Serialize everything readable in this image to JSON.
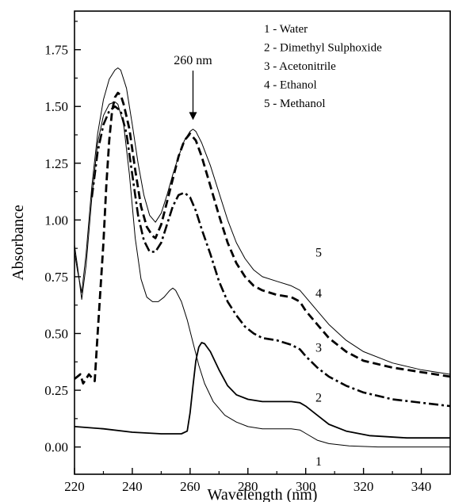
{
  "chart_data": {
    "type": "line",
    "xlabel": "Wavelength (nm)",
    "ylabel": "Absorbance",
    "xlim": [
      220,
      350
    ],
    "ylim": [
      -0.12,
      1.92
    ],
    "xticks": [
      220,
      240,
      260,
      280,
      300,
      320,
      340
    ],
    "xtick_labels": [
      "220",
      "240",
      "260",
      "280",
      "300",
      "320",
      "340"
    ],
    "yticks": [
      0.0,
      0.25,
      0.5,
      0.75,
      1.0,
      1.25,
      1.5,
      1.75
    ],
    "ytick_labels": [
      "0.00",
      "0.25",
      "0.50",
      "0.75",
      "1.00",
      "1.25",
      "1.50",
      "1.75"
    ],
    "grid": false,
    "legend_position": "top-right",
    "legend": [
      "1 - Water",
      "2 - Dimethyl Sulphoxide",
      "3 - Acetonitrile",
      "4 - Ethanol",
      "5 - Methanol"
    ],
    "annotation": {
      "text": "260 nm",
      "x": 261,
      "arrow_from_y": 1.72,
      "arrow_to_y": 1.44
    },
    "series": [
      {
        "label": "1",
        "style": "solid-thin",
        "points": [
          [
            220,
            0.89
          ],
          [
            221,
            0.8
          ],
          [
            222.5,
            0.65
          ],
          [
            224,
            0.8
          ],
          [
            226,
            1.1
          ],
          [
            228,
            1.34
          ],
          [
            230,
            1.46
          ],
          [
            232,
            1.51
          ],
          [
            234,
            1.52
          ],
          [
            235,
            1.51
          ],
          [
            237,
            1.42
          ],
          [
            239,
            1.2
          ],
          [
            241,
            0.92
          ],
          [
            243,
            0.74
          ],
          [
            245,
            0.66
          ],
          [
            247,
            0.64
          ],
          [
            249,
            0.64
          ],
          [
            251,
            0.66
          ],
          [
            253,
            0.69
          ],
          [
            254,
            0.7
          ],
          [
            255,
            0.69
          ],
          [
            257,
            0.64
          ],
          [
            259,
            0.56
          ],
          [
            261,
            0.46
          ],
          [
            263,
            0.36
          ],
          [
            265,
            0.28
          ],
          [
            268,
            0.2
          ],
          [
            272,
            0.14
          ],
          [
            276,
            0.11
          ],
          [
            280,
            0.09
          ],
          [
            285,
            0.08
          ],
          [
            290,
            0.08
          ],
          [
            295,
            0.08
          ],
          [
            298,
            0.075
          ],
          [
            300,
            0.06
          ],
          [
            304,
            0.03
          ],
          [
            308,
            0.015
          ],
          [
            315,
            0.005
          ],
          [
            325,
            0.0
          ],
          [
            350,
            0.0
          ]
        ],
        "curve_label": {
          "text": "1",
          "x": 288,
          "y": -0.06
        }
      },
      {
        "label": "2",
        "style": "solid-thick",
        "points": [
          [
            220,
            0.09
          ],
          [
            230,
            0.08
          ],
          [
            240,
            0.065
          ],
          [
            250,
            0.058
          ],
          [
            257,
            0.058
          ],
          [
            259,
            0.07
          ],
          [
            260,
            0.15
          ],
          [
            261,
            0.27
          ],
          [
            262,
            0.38
          ],
          [
            263,
            0.44
          ],
          [
            264,
            0.46
          ],
          [
            265,
            0.455
          ],
          [
            267,
            0.42
          ],
          [
            270,
            0.34
          ],
          [
            273,
            0.27
          ],
          [
            276,
            0.23
          ],
          [
            280,
            0.21
          ],
          [
            285,
            0.2
          ],
          [
            290,
            0.2
          ],
          [
            295,
            0.2
          ],
          [
            298,
            0.195
          ],
          [
            300,
            0.18
          ],
          [
            304,
            0.14
          ],
          [
            308,
            0.1
          ],
          [
            314,
            0.07
          ],
          [
            322,
            0.05
          ],
          [
            335,
            0.04
          ],
          [
            350,
            0.04
          ]
        ],
        "curve_label": {
          "text": "2",
          "x": 288,
          "y": 0.22
        }
      },
      {
        "label": "3",
        "style": "dash-dot",
        "points": [
          [
            226,
            1.1
          ],
          [
            228,
            1.3
          ],
          [
            230,
            1.42
          ],
          [
            232,
            1.48
          ],
          [
            234,
            1.5
          ],
          [
            236,
            1.48
          ],
          [
            238,
            1.38
          ],
          [
            240,
            1.2
          ],
          [
            242,
            1.02
          ],
          [
            244,
            0.91
          ],
          [
            246,
            0.86
          ],
          [
            248,
            0.86
          ],
          [
            250,
            0.9
          ],
          [
            252,
            0.98
          ],
          [
            254,
            1.06
          ],
          [
            256,
            1.11
          ],
          [
            258,
            1.12
          ],
          [
            260,
            1.1
          ],
          [
            262,
            1.04
          ],
          [
            264,
            0.96
          ],
          [
            267,
            0.85
          ],
          [
            270,
            0.73
          ],
          [
            273,
            0.64
          ],
          [
            276,
            0.58
          ],
          [
            279,
            0.53
          ],
          [
            282,
            0.5
          ],
          [
            285,
            0.48
          ],
          [
            290,
            0.47
          ],
          [
            295,
            0.45
          ],
          [
            298,
            0.43
          ],
          [
            300,
            0.4
          ],
          [
            304,
            0.35
          ],
          [
            308,
            0.31
          ],
          [
            314,
            0.27
          ],
          [
            320,
            0.24
          ],
          [
            330,
            0.21
          ],
          [
            340,
            0.195
          ],
          [
            350,
            0.18
          ]
        ],
        "curve_label": {
          "text": "3",
          "x": 288,
          "y": 0.44
        }
      },
      {
        "label": "4",
        "style": "dashed-thick",
        "points": [
          [
            220,
            0.3
          ],
          [
            222,
            0.32
          ],
          [
            223,
            0.28
          ],
          [
            225,
            0.32
          ],
          [
            227,
            0.29
          ],
          [
            228,
            0.5
          ],
          [
            230,
            0.9
          ],
          [
            231,
            1.15
          ],
          [
            232,
            1.35
          ],
          [
            233,
            1.48
          ],
          [
            234,
            1.54
          ],
          [
            235,
            1.56
          ],
          [
            236,
            1.55
          ],
          [
            237,
            1.51
          ],
          [
            239,
            1.4
          ],
          [
            241,
            1.22
          ],
          [
            243,
            1.06
          ],
          [
            245,
            0.97
          ],
          [
            247,
            0.93
          ],
          [
            248,
            0.92
          ],
          [
            250,
            0.98
          ],
          [
            252,
            1.08
          ],
          [
            254,
            1.18
          ],
          [
            256,
            1.28
          ],
          [
            258,
            1.35
          ],
          [
            260,
            1.38
          ],
          [
            262,
            1.35
          ],
          [
            264,
            1.28
          ],
          [
            267,
            1.15
          ],
          [
            270,
            1.02
          ],
          [
            273,
            0.9
          ],
          [
            276,
            0.81
          ],
          [
            279,
            0.75
          ],
          [
            282,
            0.71
          ],
          [
            285,
            0.69
          ],
          [
            290,
            0.67
          ],
          [
            295,
            0.66
          ],
          [
            298,
            0.64
          ],
          [
            300,
            0.6
          ],
          [
            304,
            0.54
          ],
          [
            308,
            0.48
          ],
          [
            314,
            0.42
          ],
          [
            320,
            0.38
          ],
          [
            330,
            0.35
          ],
          [
            340,
            0.33
          ],
          [
            350,
            0.31
          ]
        ],
        "curve_label": {
          "text": "4",
          "x": 288,
          "y": 0.68
        }
      },
      {
        "label": "5",
        "style": "solid-thin",
        "points": [
          [
            220,
            0.86
          ],
          [
            221,
            0.78
          ],
          [
            222.5,
            0.68
          ],
          [
            224,
            0.85
          ],
          [
            226,
            1.15
          ],
          [
            228,
            1.38
          ],
          [
            230,
            1.53
          ],
          [
            232,
            1.62
          ],
          [
            234,
            1.66
          ],
          [
            235,
            1.67
          ],
          [
            236,
            1.66
          ],
          [
            238,
            1.58
          ],
          [
            240,
            1.42
          ],
          [
            242,
            1.25
          ],
          [
            244,
            1.11
          ],
          [
            246,
            1.02
          ],
          [
            248,
            0.99
          ],
          [
            250,
            1.03
          ],
          [
            252,
            1.11
          ],
          [
            254,
            1.2
          ],
          [
            256,
            1.28
          ],
          [
            258,
            1.35
          ],
          [
            260,
            1.39
          ],
          [
            261,
            1.4
          ],
          [
            262,
            1.39
          ],
          [
            264,
            1.34
          ],
          [
            267,
            1.24
          ],
          [
            270,
            1.12
          ],
          [
            273,
            1.0
          ],
          [
            276,
            0.9
          ],
          [
            279,
            0.83
          ],
          [
            282,
            0.78
          ],
          [
            285,
            0.75
          ],
          [
            290,
            0.73
          ],
          [
            295,
            0.71
          ],
          [
            298,
            0.69
          ],
          [
            300,
            0.66
          ],
          [
            304,
            0.6
          ],
          [
            308,
            0.54
          ],
          [
            314,
            0.47
          ],
          [
            320,
            0.42
          ],
          [
            330,
            0.37
          ],
          [
            340,
            0.34
          ],
          [
            350,
            0.32
          ]
        ],
        "curve_label": {
          "text": "5",
          "x": 288,
          "y": 0.86
        }
      }
    ]
  }
}
